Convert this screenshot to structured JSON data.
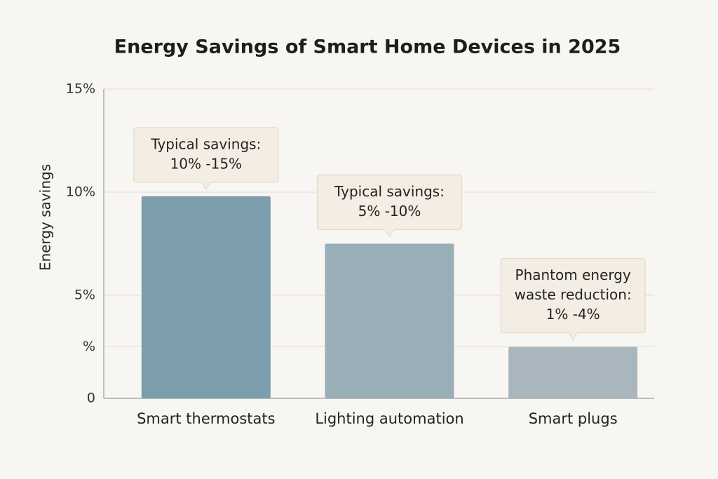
{
  "chart_data": {
    "type": "bar",
    "title": "Energy Savings of Smart Home Devices in 2025",
    "y_label": "Energy savings",
    "categories": [
      "Smart thermostats",
      "Lighting automation",
      "Smart plugs"
    ],
    "values": [
      9.8,
      7.5,
      2.5
    ],
    "colors": [
      "#7b9dac",
      "#9aaeb8",
      "#aab6bd"
    ],
    "annotations": [
      [
        "Typical savings:",
        "10% -15%"
      ],
      [
        "Typical savings:",
        "5% -10%"
      ],
      [
        "Phantom energy",
        "waste reduction:",
        "1% -4%"
      ]
    ],
    "ylim": [
      0,
      15
    ],
    "yticks": [
      0,
      {
        "value": 2.5,
        "label": "%"
      },
      {
        "value": 5,
        "label": "5%"
      },
      {
        "value": 10,
        "label": "10%"
      },
      {
        "value": 15,
        "label": "15%"
      }
    ],
    "grid": true
  }
}
